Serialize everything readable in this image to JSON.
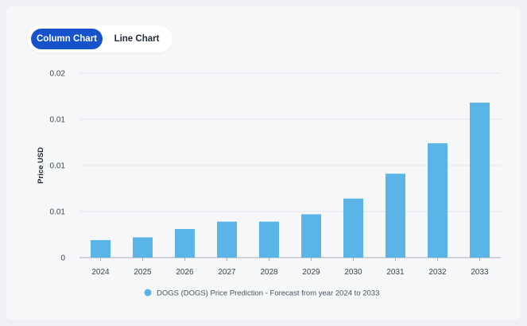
{
  "tabs": [
    {
      "label": "Column Chart",
      "active": true
    },
    {
      "label": "Line Chart",
      "active": false
    }
  ],
  "colors": {
    "bar": "#5ab4e5",
    "active_tab": "#1652c9",
    "gridline": "#e3e6eb",
    "axis": "#a9aeb8"
  },
  "chart_data": {
    "type": "bar",
    "title": "",
    "xlabel": "",
    "ylabel": "Price USD",
    "ylim": [
      0,
      0.02
    ],
    "grid": true,
    "yticks": [
      {
        "value": 0,
        "label": "0"
      },
      {
        "value": 0.005,
        "label": "0.01"
      },
      {
        "value": 0.01,
        "label": "0.01"
      },
      {
        "value": 0.015,
        "label": "0.01"
      },
      {
        "value": 0.02,
        "label": "0.02"
      }
    ],
    "categories": [
      "2024",
      "2025",
      "2026",
      "2027",
      "2028",
      "2029",
      "2030",
      "2031",
      "2032",
      "2033"
    ],
    "series": [
      {
        "name": "DOGS (DOGS) Price Prediction - Forecast from year 2024 to 2033",
        "values": [
          0.0019,
          0.0022,
          0.0031,
          0.0039,
          0.0039,
          0.0047,
          0.0064,
          0.0091,
          0.0124,
          0.0168
        ]
      }
    ],
    "legend": "bottom-center"
  }
}
